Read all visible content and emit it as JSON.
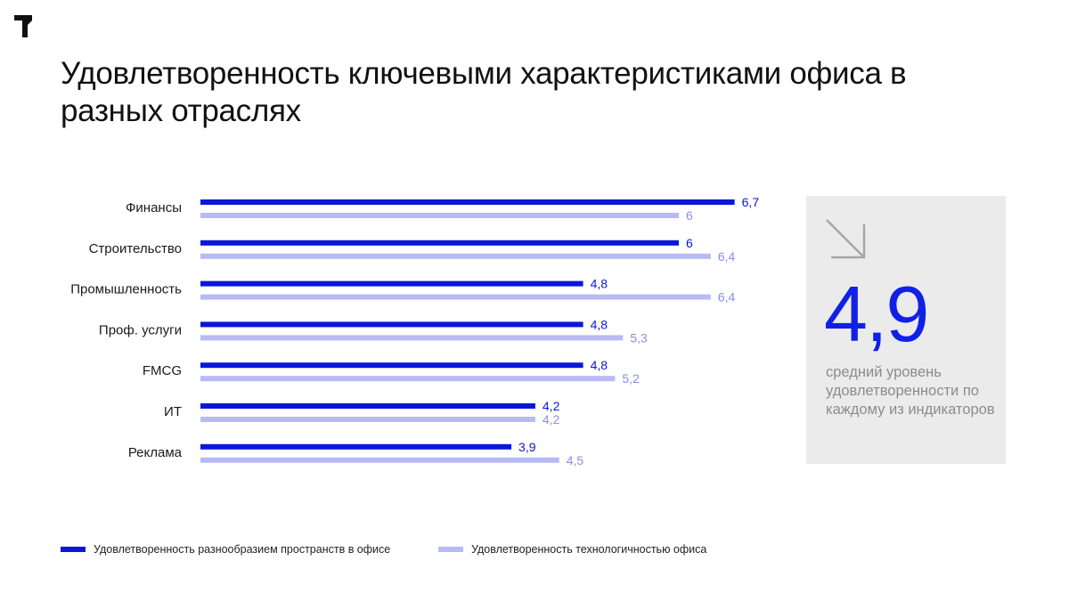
{
  "title": "Удовлетворенность ключевыми характеристиками офиса в разных отраслях",
  "logo_icon": "brand-logo-icon",
  "colors": {
    "series_a": "#0a17d6",
    "series_b": "#b7baf5",
    "label_b": "#8a8fe6",
    "panel_bg": "#ebebeb",
    "big_number": "#1020e6"
  },
  "chart_data": {
    "type": "bar",
    "orientation": "horizontal",
    "categories": [
      "Финансы",
      "Строительство",
      "Промышленность",
      "Проф. услуги",
      "FMCG",
      "ИТ",
      "Реклама"
    ],
    "series": [
      {
        "name": "Удовлетворенность разнообразием пространств в офисе",
        "values": [
          6.7,
          6,
          4.8,
          4.8,
          4.8,
          4.2,
          3.9
        ],
        "labels": [
          "6,7",
          "6",
          "4,8",
          "4,8",
          "4,8",
          "4,2",
          "3,9"
        ]
      },
      {
        "name": "Удовлетворенность технологичностью офиса",
        "values": [
          6,
          6.4,
          6.4,
          5.3,
          5.2,
          4.2,
          4.5
        ],
        "labels": [
          "6",
          "6,4",
          "6,4",
          "5,3",
          "5,2",
          "4,2",
          "4,5"
        ]
      }
    ],
    "xlim": [
      0,
      6.7
    ],
    "grid": false,
    "legend": "bottom-left",
    "title": "Удовлетворенность ключевыми характеристиками офиса в разных отраслях",
    "xlabel": "",
    "ylabel": ""
  },
  "summary": {
    "icon": "arrow-down-right-icon",
    "value": "4,9",
    "caption": "средний уровень удовлетворенности по каждому из индикаторов"
  }
}
